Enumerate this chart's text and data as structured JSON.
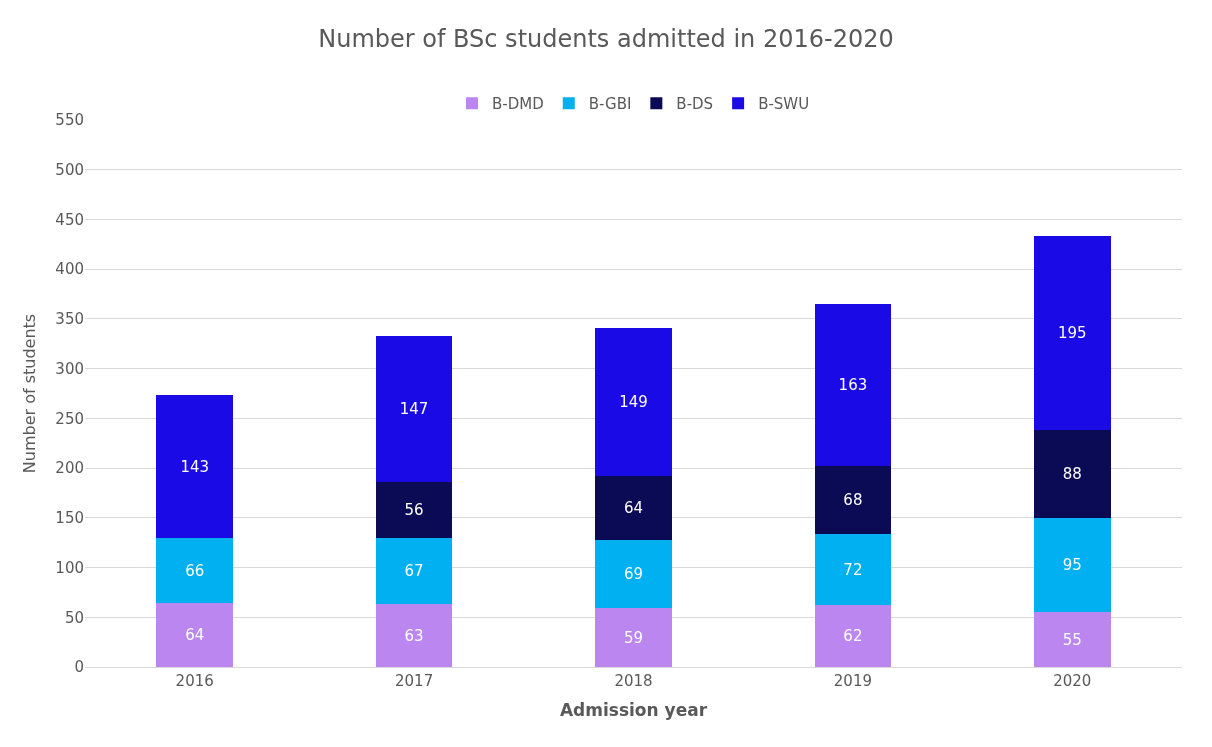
{
  "chart_data": {
    "type": "bar",
    "title": "Number of BSc students admitted in 2016-2020",
    "xlabel": "Admission year",
    "ylabel": "Number of students",
    "categories": [
      "2016",
      "2017",
      "2018",
      "2019",
      "2020"
    ],
    "stacked": true,
    "data_labels": true,
    "grid": "y",
    "legend": "top",
    "ylim": [
      0,
      550
    ],
    "yticks": [
      0,
      50,
      100,
      150,
      200,
      250,
      300,
      350,
      400,
      450,
      500,
      550
    ],
    "series": [
      {
        "name": "B-DMD",
        "color": "#bb86f0",
        "values": [
          64,
          63,
          59,
          62,
          55
        ]
      },
      {
        "name": "B-GBI",
        "color": "#00b0f0",
        "values": [
          66,
          67,
          69,
          72,
          95
        ]
      },
      {
        "name": "B-DS",
        "color": "#0b0b55",
        "values": [
          null,
          56,
          64,
          68,
          88
        ]
      },
      {
        "name": "B-SWU",
        "color": "#1a0ae6",
        "values": [
          143,
          147,
          149,
          163,
          195
        ]
      }
    ]
  }
}
